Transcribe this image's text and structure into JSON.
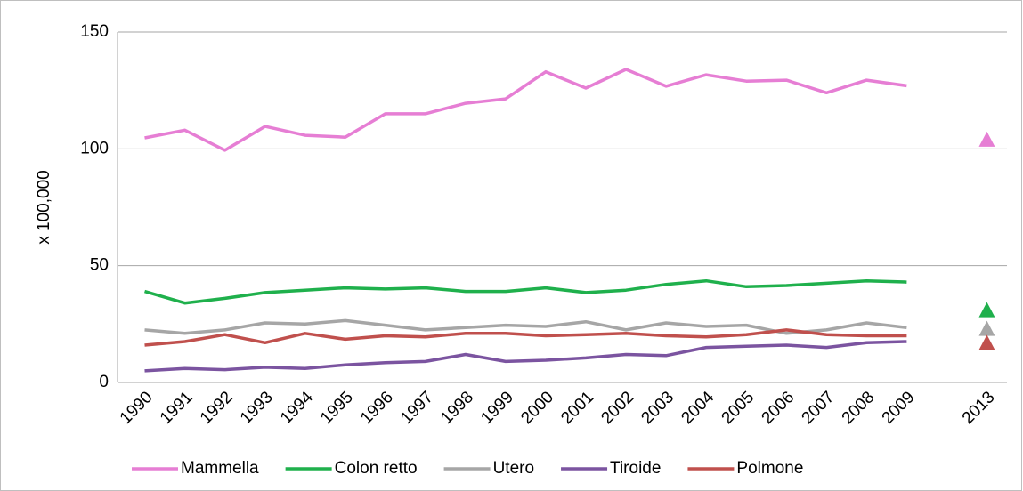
{
  "chart_data": {
    "type": "line",
    "y_label": "x 100,000",
    "categories": [
      "1990",
      "1991",
      "1992",
      "1993",
      "1994",
      "1995",
      "1996",
      "1997",
      "1998",
      "1999",
      "2000",
      "2001",
      "2002",
      "2003",
      "2004",
      "2005",
      "2006",
      "2007",
      "2008",
      "2009",
      null,
      "2013"
    ],
    "series": [
      {
        "name": "Mammella",
        "color": "#e67ed4",
        "values": [
          104.7,
          108,
          99.4,
          109.6,
          105.8,
          105,
          115,
          115,
          119.5,
          121.4,
          133,
          126,
          134,
          126.8,
          131.7,
          129,
          129.4,
          124,
          129.4,
          127,
          null,
          104
        ]
      },
      {
        "name": "Colon retto",
        "color": "#1fb04c",
        "values": [
          39,
          34,
          36,
          38.5,
          39.5,
          40.5,
          40,
          40.5,
          39,
          39,
          40.5,
          38.5,
          39.5,
          42,
          43.5,
          41,
          41.5,
          42.5,
          43.5,
          43,
          null,
          31
        ]
      },
      {
        "name": "Utero",
        "color": "#a6a6a6",
        "values": [
          22.5,
          21,
          22.5,
          25.5,
          25,
          26.5,
          24.5,
          22.5,
          23.5,
          24.5,
          24,
          26,
          22.5,
          25.5,
          24,
          24.5,
          21,
          22.5,
          25.5,
          23.5,
          null,
          23
        ]
      },
      {
        "name": "Tiroide",
        "color": "#7b54a0",
        "values": [
          5,
          6,
          5.5,
          6.5,
          6,
          7.5,
          8.5,
          9,
          12,
          9,
          9.5,
          10.5,
          12,
          11.5,
          15,
          15.5,
          16,
          15,
          17,
          17.5,
          null,
          null
        ]
      },
      {
        "name": "Polmone",
        "color": "#c0504d",
        "values": [
          16,
          17.5,
          20.5,
          17,
          21,
          18.5,
          20,
          19.5,
          21,
          21,
          20,
          20.5,
          21,
          20,
          19.5,
          20.5,
          22.5,
          20.5,
          20,
          20,
          null,
          17
        ]
      }
    ],
    "ylim": [
      0,
      150
    ],
    "yticks": [
      0,
      50,
      100,
      150
    ],
    "grid": true
  }
}
